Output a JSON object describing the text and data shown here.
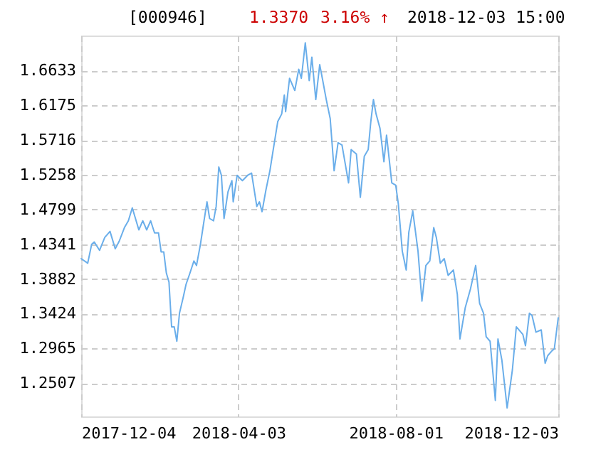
{
  "chart_data": {
    "type": "line",
    "title": "[000946]",
    "annotations": [
      "1.3370",
      "3.16% ↑",
      "2018-12-03 15:00"
    ],
    "x": [
      "2017-12-04",
      "2017-12-09",
      "2017-12-12",
      "2017-12-14",
      "2017-12-18",
      "2017-12-22",
      "2017-12-26",
      "2017-12-30",
      "2018-01-02",
      "2018-01-06",
      "2018-01-09",
      "2018-01-12",
      "2018-01-17",
      "2018-01-20",
      "2018-01-23",
      "2018-01-26",
      "2018-01-29",
      "2018-02-01",
      "2018-02-03",
      "2018-02-05",
      "2018-02-07",
      "2018-02-09",
      "2018-02-11",
      "2018-02-13",
      "2018-02-15",
      "2018-02-17",
      "2018-02-20",
      "2018-02-22",
      "2018-02-25",
      "2018-02-28",
      "2018-03-02",
      "2018-03-05",
      "2018-03-08",
      "2018-03-10",
      "2018-03-12",
      "2018-03-15",
      "2018-03-17",
      "2018-03-19",
      "2018-03-21",
      "2018-03-23",
      "2018-03-26",
      "2018-03-29",
      "2018-03-30",
      "2018-04-02",
      "2018-04-06",
      "2018-04-10",
      "2018-04-13",
      "2018-04-17",
      "2018-04-19",
      "2018-04-21",
      "2018-04-24",
      "2018-04-27",
      "2018-04-29",
      "2018-05-03",
      "2018-05-06",
      "2018-05-08",
      "2018-05-09",
      "2018-05-12",
      "2018-05-16",
      "2018-05-19",
      "2018-05-21",
      "2018-05-24",
      "2018-05-27",
      "2018-05-29",
      "2018-06-01",
      "2018-06-04",
      "2018-06-06",
      "2018-06-09",
      "2018-06-12",
      "2018-06-15",
      "2018-06-18",
      "2018-06-21",
      "2018-06-26",
      "2018-06-28",
      "2018-07-02",
      "2018-07-05",
      "2018-07-08",
      "2018-07-11",
      "2018-07-13",
      "2018-07-15",
      "2018-07-17",
      "2018-07-20",
      "2018-07-23",
      "2018-07-25",
      "2018-07-29",
      "2018-08-01",
      "2018-08-03",
      "2018-08-06",
      "2018-08-09",
      "2018-08-11",
      "2018-08-14",
      "2018-08-18",
      "2018-08-21",
      "2018-08-24",
      "2018-08-27",
      "2018-08-30",
      "2018-09-01",
      "2018-09-04",
      "2018-09-07",
      "2018-09-10",
      "2018-09-14",
      "2018-09-17",
      "2018-09-19",
      "2018-09-23",
      "2018-09-27",
      "2018-10-01",
      "2018-10-04",
      "2018-10-07",
      "2018-10-09",
      "2018-10-12",
      "2018-10-16",
      "2018-10-18",
      "2018-10-21",
      "2018-10-25",
      "2018-10-29",
      "2018-11-01",
      "2018-11-06",
      "2018-11-08",
      "2018-11-11",
      "2018-11-13",
      "2018-11-16",
      "2018-11-20",
      "2018-11-23",
      "2018-11-25",
      "2018-11-28",
      "2018-11-30",
      "2018-12-03"
    ],
    "series": [
      {
        "color": "#6aaeea",
        "values": [
          1.415,
          1.409,
          1.434,
          1.437,
          1.426,
          1.443,
          1.451,
          1.428,
          1.438,
          1.456,
          1.465,
          1.482,
          1.453,
          1.465,
          1.453,
          1.465,
          1.449,
          1.449,
          1.424,
          1.424,
          1.396,
          1.384,
          1.325,
          1.325,
          1.306,
          1.343,
          1.365,
          1.381,
          1.396,
          1.412,
          1.406,
          1.434,
          1.468,
          1.49,
          1.468,
          1.465,
          1.484,
          1.536,
          1.525,
          1.468,
          1.503,
          1.518,
          1.49,
          1.525,
          1.518,
          1.525,
          1.528,
          1.484,
          1.49,
          1.477,
          1.506,
          1.531,
          1.553,
          1.596,
          1.606,
          1.631,
          1.609,
          1.653,
          1.637,
          1.665,
          1.653,
          1.7,
          1.65,
          1.681,
          1.625,
          1.671,
          1.653,
          1.625,
          1.6,
          1.531,
          1.568,
          1.565,
          1.515,
          1.559,
          1.553,
          1.496,
          1.55,
          1.559,
          1.596,
          1.625,
          1.606,
          1.587,
          1.543,
          1.578,
          1.515,
          1.512,
          1.487,
          1.425,
          1.4,
          1.45,
          1.478,
          1.425,
          1.359,
          1.406,
          1.412,
          1.456,
          1.443,
          1.409,
          1.415,
          1.393,
          1.4,
          1.368,
          1.309,
          1.35,
          1.375,
          1.406,
          1.356,
          1.343,
          1.312,
          1.306,
          1.228,
          1.309,
          1.281,
          1.218,
          1.268,
          1.325,
          1.315,
          1.3,
          1.343,
          1.34,
          1.318,
          1.321,
          1.277,
          1.287,
          1.293,
          1.296,
          1.337
        ]
      }
    ],
    "xlim": [
      "2017-12-04",
      "2018-12-03"
    ],
    "xticks": [
      "2017-12-04",
      "2018-04-03",
      "2018-08-01",
      "2018-12-03"
    ],
    "ylim": [
      1.2068,
      1.7095
    ],
    "yticks": [
      1.2507,
      1.2965,
      1.3424,
      1.3882,
      1.4341,
      1.4799,
      1.5258,
      1.5716,
      1.6175,
      1.6633
    ],
    "grid": true,
    "marker": "none",
    "line_style": "solid"
  }
}
